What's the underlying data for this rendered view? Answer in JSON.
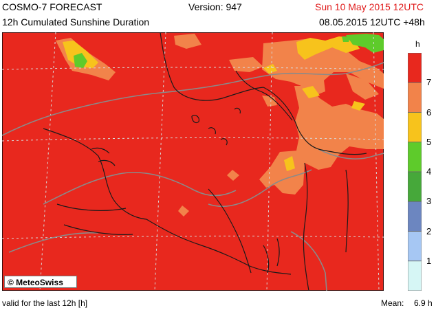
{
  "header": {
    "model": "COSMO-7 FORECAST",
    "version": "Version: 947",
    "valid_time": "Sun 10 May 2015 12UTC",
    "product": "12h Cumulated Sunshine Duration",
    "run": "08.05.2015 12UTC +48h"
  },
  "footer": {
    "note": "valid for the last 12h [h]",
    "mean_label": "Mean:",
    "mean_value": "6.9 h"
  },
  "credit": "© MeteoSwiss",
  "legend": {
    "unit": "h",
    "ticks": [
      "7",
      "6",
      "5",
      "4",
      "3",
      "2",
      "1"
    ],
    "colors": [
      "#e8281e",
      "#f2834a",
      "#f7c31c",
      "#5ecb2b",
      "#46a83a",
      "#6c86c0",
      "#a6c7f3",
      "#d6f6f5"
    ]
  },
  "colors": {
    "title_red": "#e01b1b",
    "base": "#e8281e"
  }
}
